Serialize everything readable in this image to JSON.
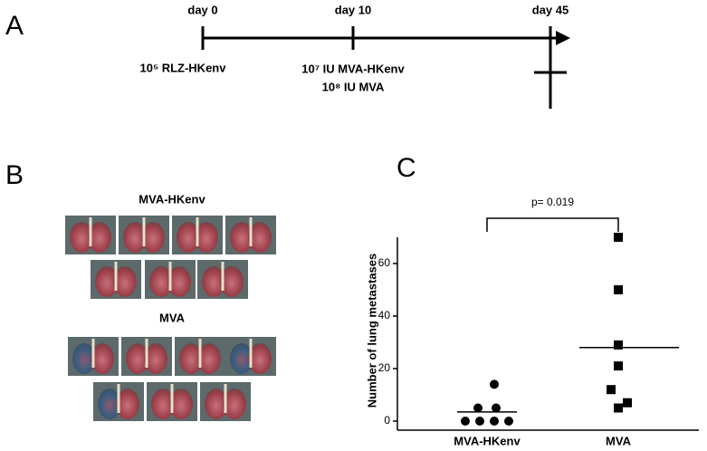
{
  "panels": {
    "a": "A",
    "b": "B",
    "c": "C"
  },
  "timeline": {
    "days": [
      "day 0",
      "day 10",
      "day 45"
    ],
    "treatments": [
      "10⁵ RLZ-HKenv",
      "10⁷ IU MVA-HKenv",
      "10⁸ IU MVA"
    ]
  },
  "photos": {
    "groups": [
      "MVA-HKenv",
      "MVA"
    ]
  },
  "chart_data": {
    "type": "strip",
    "categories": [
      "MVA-HKenv",
      "MVA"
    ],
    "values": [
      [
        14,
        5,
        5,
        0,
        0,
        0,
        0
      ],
      [
        70,
        50,
        29,
        21,
        12,
        7,
        5
      ]
    ],
    "means": [
      3.5,
      28
    ],
    "markers": [
      "circle",
      "square"
    ],
    "color": "#000000",
    "ylabel": "Number of lung metastases",
    "annotation": "p= 0.019",
    "ylim": [
      0,
      70
    ],
    "yticks": [
      0,
      20,
      40,
      60
    ]
  }
}
